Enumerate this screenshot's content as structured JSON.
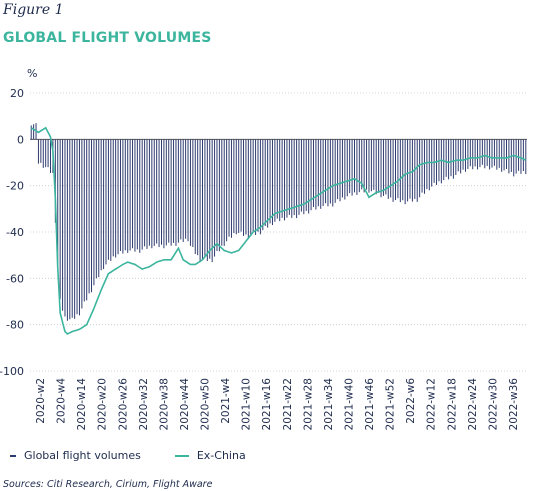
{
  "figure_label": "Figure 1",
  "title": "GLOBAL FLIGHT VOLUMES",
  "unit_label": "%",
  "sources": "Sources: Citi Research, Cirium, Flight Aware",
  "colors": {
    "bars": "#2e3b6e",
    "line": "#3bb59d",
    "grid": "#c9c9c9",
    "title": "#3bb59d"
  },
  "chart_data": {
    "type": "bar",
    "title": "GLOBAL FLIGHT VOLUMES",
    "ylabel": "%",
    "ylim": [
      -100,
      20
    ],
    "yticks": [
      20,
      0,
      -20,
      -40,
      -60,
      -80,
      -100
    ],
    "grid": true,
    "legend_position": "bottom-left",
    "xtick_labels": [
      "2020-w2",
      "2020-w4",
      "2020-w14",
      "2020-w20",
      "2020-w26",
      "2020-w32",
      "2020-w38",
      "2020-w44",
      "2020-w50",
      "2021-w4",
      "2021-w10",
      "2021-w16",
      "2021-w22",
      "2021-w28",
      "2021-w34",
      "2021-w40",
      "2021-w46",
      "2021-w52",
      "2022-w6",
      "2022-w12",
      "2022-w18",
      "2022-w24",
      "2022-w30",
      "2022-w36"
    ],
    "series": [
      {
        "name": "Global flight volumes",
        "type": "bar",
        "anchors": [
          [
            0,
            7
          ],
          [
            2,
            6
          ],
          [
            3,
            -10
          ],
          [
            6,
            -12
          ],
          [
            9,
            -15
          ],
          [
            11,
            -55
          ],
          [
            12,
            -70
          ],
          [
            14,
            -77
          ],
          [
            17,
            -78
          ],
          [
            20,
            -75
          ],
          [
            25,
            -65
          ],
          [
            30,
            -55
          ],
          [
            35,
            -50
          ],
          [
            40,
            -48
          ],
          [
            45,
            -48
          ],
          [
            50,
            -46
          ],
          [
            55,
            -46
          ],
          [
            60,
            -45
          ],
          [
            65,
            -43
          ],
          [
            66,
            -46
          ],
          [
            70,
            -52
          ],
          [
            75,
            -52
          ],
          [
            80,
            -45
          ],
          [
            85,
            -40
          ],
          [
            90,
            -42
          ],
          [
            95,
            -40
          ],
          [
            100,
            -36
          ],
          [
            105,
            -34
          ],
          [
            110,
            -33
          ],
          [
            115,
            -31
          ],
          [
            120,
            -29
          ],
          [
            125,
            -28
          ],
          [
            130,
            -25
          ],
          [
            135,
            -23
          ],
          [
            140,
            -22
          ],
          [
            145,
            -24
          ],
          [
            150,
            -26
          ],
          [
            155,
            -27
          ],
          [
            160,
            -26
          ],
          [
            165,
            -21
          ],
          [
            170,
            -18
          ],
          [
            175,
            -16
          ],
          [
            180,
            -13
          ],
          [
            185,
            -12
          ],
          [
            190,
            -12
          ],
          [
            195,
            -13
          ],
          [
            200,
            -15
          ],
          [
            205,
            -14
          ]
        ]
      },
      {
        "name": "Ex-China",
        "type": "line",
        "anchors": [
          [
            0,
            5
          ],
          [
            3,
            3
          ],
          [
            6,
            5
          ],
          [
            8,
            1
          ],
          [
            9,
            -5
          ],
          [
            10,
            -25
          ],
          [
            11,
            -55
          ],
          [
            12,
            -75
          ],
          [
            14,
            -83
          ],
          [
            15,
            -84
          ],
          [
            17,
            -83
          ],
          [
            20,
            -82
          ],
          [
            23,
            -80
          ],
          [
            26,
            -73
          ],
          [
            29,
            -65
          ],
          [
            32,
            -58
          ],
          [
            35,
            -56
          ],
          [
            38,
            -54
          ],
          [
            40,
            -53
          ],
          [
            43,
            -54
          ],
          [
            46,
            -56
          ],
          [
            49,
            -55
          ],
          [
            52,
            -53
          ],
          [
            55,
            -52
          ],
          [
            58,
            -52
          ],
          [
            61,
            -47
          ],
          [
            63,
            -52
          ],
          [
            66,
            -54
          ],
          [
            68,
            -54
          ],
          [
            71,
            -52
          ],
          [
            74,
            -48
          ],
          [
            77,
            -45
          ],
          [
            80,
            -48
          ],
          [
            83,
            -49
          ],
          [
            86,
            -48
          ],
          [
            89,
            -44
          ],
          [
            92,
            -40
          ],
          [
            95,
            -38
          ],
          [
            98,
            -35
          ],
          [
            101,
            -32
          ],
          [
            104,
            -31
          ],
          [
            107,
            -30
          ],
          [
            110,
            -29
          ],
          [
            113,
            -28
          ],
          [
            116,
            -26
          ],
          [
            119,
            -24
          ],
          [
            122,
            -22
          ],
          [
            125,
            -20
          ],
          [
            128,
            -19
          ],
          [
            131,
            -18
          ],
          [
            134,
            -17
          ],
          [
            137,
            -19
          ],
          [
            140,
            -25
          ],
          [
            143,
            -23
          ],
          [
            146,
            -22
          ],
          [
            149,
            -20
          ],
          [
            152,
            -18
          ],
          [
            155,
            -15
          ],
          [
            158,
            -14
          ],
          [
            161,
            -11
          ],
          [
            164,
            -10
          ],
          [
            167,
            -10
          ],
          [
            170,
            -9
          ],
          [
            173,
            -10
          ],
          [
            176,
            -9
          ],
          [
            179,
            -9
          ],
          [
            182,
            -8
          ],
          [
            185,
            -8
          ],
          [
            188,
            -7
          ],
          [
            191,
            -8
          ],
          [
            194,
            -8
          ],
          [
            197,
            -8
          ],
          [
            200,
            -7
          ],
          [
            203,
            -8
          ],
          [
            205,
            -9
          ]
        ]
      }
    ]
  },
  "legend": {
    "bars_label": "Global flight volumes",
    "line_label": "Ex-China"
  }
}
